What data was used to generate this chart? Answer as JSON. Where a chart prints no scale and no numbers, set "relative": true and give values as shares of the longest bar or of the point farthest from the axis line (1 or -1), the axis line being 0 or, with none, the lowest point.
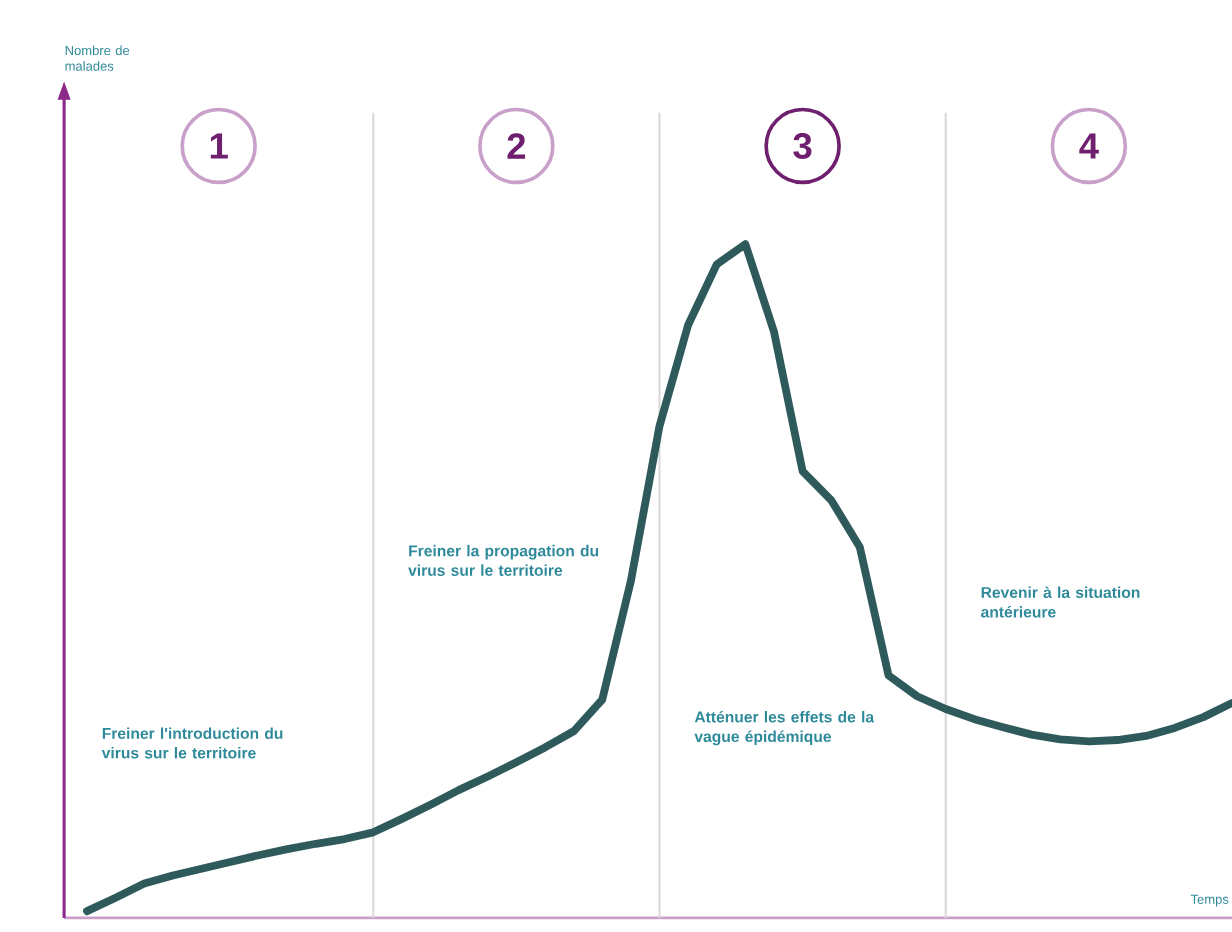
{
  "chart_data": {
    "type": "line",
    "relative": true,
    "grid": "x",
    "xlabel": "Temps",
    "categories": [
      null,
      null,
      null,
      null,
      null,
      null,
      null,
      null,
      null,
      null,
      null,
      null,
      null,
      null,
      null,
      null,
      null,
      null,
      null,
      null,
      null,
      null,
      null,
      null,
      null,
      null,
      null,
      null,
      null,
      null,
      null,
      null,
      null,
      null,
      null,
      null,
      null,
      null,
      null,
      null,
      null
    ],
    "series": [
      {
        "color": "#2f5a5c",
        "values": [
          0.01,
          0.03,
          0.051,
          0.063,
          0.073,
          0.083,
          0.093,
          0.102,
          0.11,
          0.117,
          0.127,
          0.147,
          0.168,
          0.19,
          0.21,
          0.231,
          0.253,
          0.277,
          0.324,
          0.5,
          0.73,
          0.88,
          0.97,
          1,
          0.87,
          0.663,
          0.62,
          0.55,
          0.36,
          0.329,
          0.31,
          0.295,
          0.283,
          0.272,
          0.265,
          0.262,
          0.264,
          0.27,
          0.282,
          0.298,
          0.319
        ]
      }
    ],
    "annotations": [
      "1",
      "Freiner l'introduction du virus sur le territoire",
      "2",
      "Freiner la propagation du virus sur le territoire",
      "3",
      "Atténuer les effets de la vague épidémique",
      "4",
      "Revenir à la situation antérieure",
      "Nombre de malades"
    ]
  }
}
